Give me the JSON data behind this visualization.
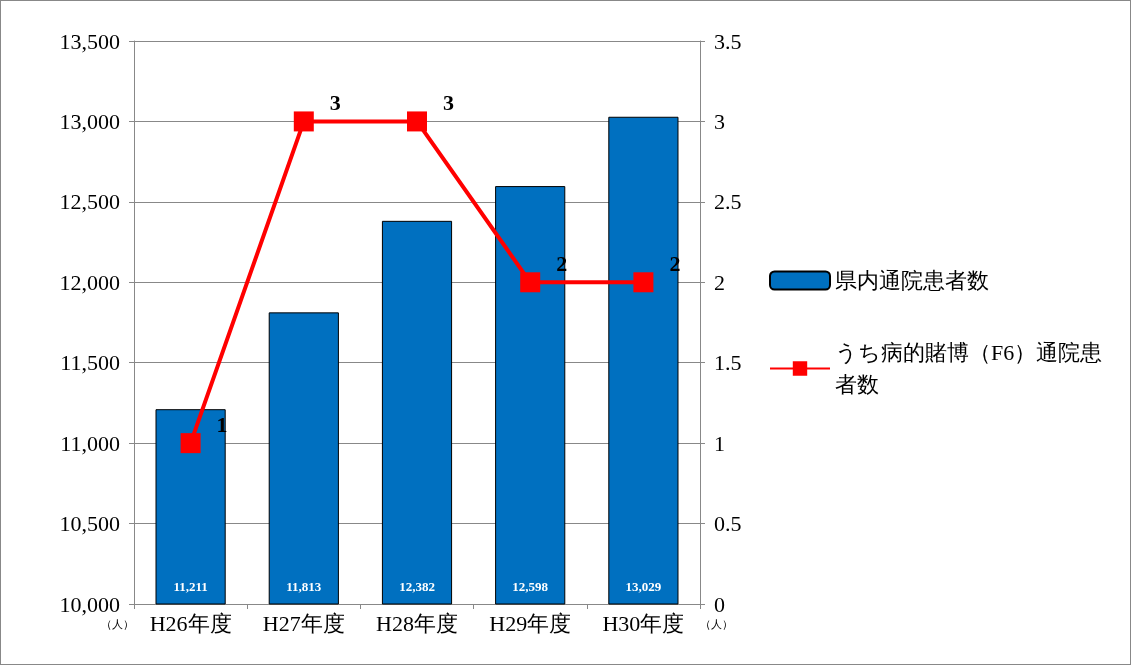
{
  "chart_data": {
    "type": "bar",
    "categories": [
      "H26年度",
      "H27年度",
      "H28年度",
      "H29年度",
      "H30年度"
    ],
    "series": [
      {
        "name": "県内通院患者数",
        "color": "#0070c0",
        "values": [
          11211,
          11813,
          12382,
          12598,
          13029
        ],
        "value_labels": [
          "11,211",
          "11,813",
          "12,382",
          "12,598",
          "13,029"
        ]
      },
      {
        "name": "うち病的賭博（F6）通院患者数",
        "type": "line",
        "axis": "y2",
        "color": "#ff0000",
        "values": [
          1,
          3,
          3,
          2,
          2
        ]
      }
    ],
    "ylabel": "（人）",
    "y2label": "（人）",
    "ylim": [
      10000,
      13500
    ],
    "yticks": [
      {
        "value": 10000,
        "label": "10,000"
      },
      {
        "value": 10500,
        "label": "10,500"
      },
      {
        "value": 11000,
        "label": "11,000"
      },
      {
        "value": 11500,
        "label": "11,500"
      },
      {
        "value": 12000,
        "label": "12,000"
      },
      {
        "value": 12500,
        "label": "12,500"
      },
      {
        "value": 13000,
        "label": "13,000"
      },
      {
        "value": 13500,
        "label": "13,500"
      }
    ],
    "y2lim": [
      0,
      3.5
    ],
    "y2ticks": [
      0,
      0.5,
      1,
      1.5,
      2,
      2.5,
      3,
      3.5
    ],
    "grid": "y",
    "legend": "right",
    "marker": "square",
    "data_labels": true
  }
}
